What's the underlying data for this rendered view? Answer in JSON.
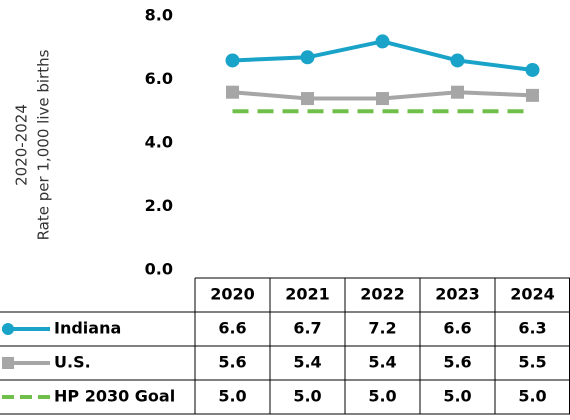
{
  "chart_data": {
    "type": "line",
    "y_label": [
      "2020-2024",
      "Rate per 1,000 live births"
    ],
    "categories": [
      "2020",
      "2021",
      "2022",
      "2023",
      "2024"
    ],
    "series": [
      {
        "name": "Indiana",
        "color": "#1aa3c8",
        "marker": "circle",
        "dash": false,
        "values": [
          6.6,
          6.7,
          7.2,
          6.6,
          6.3
        ],
        "value_labels": [
          "6.6",
          "6.7",
          "7.2",
          "6.6",
          "6.3"
        ]
      },
      {
        "name": "U.S.",
        "color": "#a6a6a6",
        "marker": "square",
        "dash": false,
        "values": [
          5.6,
          5.4,
          5.4,
          5.6,
          5.5
        ],
        "value_labels": [
          "5.6",
          "5.4",
          "5.4",
          "5.6",
          "5.5"
        ]
      },
      {
        "name": "HP 2030 Goal",
        "color": "#6fbf4a",
        "marker": "none",
        "dash": true,
        "values": [
          5.0,
          5.0,
          5.0,
          5.0,
          5.0
        ],
        "value_labels": [
          "5.0",
          "5.0",
          "5.0",
          "5.0",
          "5.0"
        ]
      }
    ],
    "ylim": [
      0,
      8
    ],
    "yticks": [
      {
        "value": 0,
        "label": "0.0"
      },
      {
        "value": 2,
        "label": "2.0"
      },
      {
        "value": 4,
        "label": "4.0"
      },
      {
        "value": 6,
        "label": "6.0"
      },
      {
        "value": 8,
        "label": "8.0"
      }
    ],
    "grid": false
  }
}
